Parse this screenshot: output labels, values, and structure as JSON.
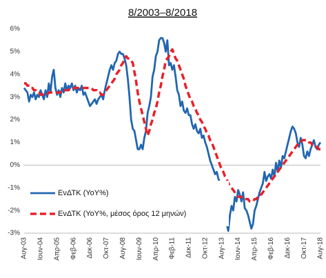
{
  "chart_data": {
    "type": "line",
    "title": "8/2003–8/2018",
    "categories": [
      "Αυγ-03",
      null,
      null,
      null,
      null,
      null,
      null,
      null,
      null,
      null,
      "Ιουν-04",
      null,
      null,
      null,
      null,
      null,
      null,
      null,
      null,
      null,
      "Απρ-05",
      null,
      null,
      null,
      null,
      null,
      null,
      null,
      null,
      null,
      "Φεβ-06",
      null,
      null,
      null,
      null,
      null,
      null,
      null,
      null,
      null,
      "Δεκ-06",
      null,
      null,
      null,
      null,
      null,
      null,
      null,
      null,
      null,
      "Οκτ-07",
      null,
      null,
      null,
      null,
      null,
      null,
      null,
      null,
      null,
      "Αυγ-08",
      null,
      null,
      null,
      null,
      null,
      null,
      null,
      null,
      null,
      "Ιουν-09",
      null,
      null,
      null,
      null,
      null,
      null,
      null,
      null,
      null,
      "Απρ-10",
      null,
      null,
      null,
      null,
      null,
      null,
      null,
      null,
      null,
      "Φεβ-11",
      null,
      null,
      null,
      null,
      null,
      null,
      null,
      null,
      null,
      "Δεκ-11",
      null,
      null,
      null,
      null,
      null,
      null,
      null,
      null,
      null,
      "Οκτ-12",
      null,
      null,
      null,
      null,
      null,
      null,
      null,
      null,
      null,
      "Αυγ-13",
      null,
      null,
      null,
      null,
      null,
      null,
      null,
      null,
      null,
      "Ιουν-14",
      null,
      null,
      null,
      null,
      null,
      null,
      null,
      null,
      null,
      "Απρ-15",
      null,
      null,
      null,
      null,
      null,
      null,
      null,
      null,
      null,
      "Φεβ-16",
      null,
      null,
      null,
      null,
      null,
      null,
      null,
      null,
      null,
      "Δεκ-16",
      null,
      null,
      null,
      null,
      null,
      null,
      null,
      null,
      null,
      "Οκτ-17",
      null,
      null,
      null,
      null,
      null,
      null,
      null,
      null,
      null,
      "Αυγ-18"
    ],
    "series": [
      {
        "name": "ΕνΔΤΚ (YoY%)",
        "color": "#2166b0",
        "dashed": false,
        "values": [
          3.4,
          3.3,
          3.2,
          2.8,
          3.1,
          3.0,
          3.2,
          2.9,
          3.1,
          3.0,
          3.3,
          3.1,
          2.9,
          3.3,
          3.0,
          3.6,
          3.2,
          3.9,
          4.2,
          3.4,
          3.1,
          3.3,
          3.0,
          3.4,
          3.2,
          3.6,
          3.3,
          3.5,
          3.4,
          3.6,
          3.3,
          3.5,
          3.2,
          3.4,
          3.3,
          3.5,
          3.1,
          3.2,
          3.0,
          2.8,
          2.6,
          2.7,
          2.8,
          2.9,
          2.7,
          2.9,
          3.0,
          3.1,
          2.9,
          3.3,
          3.6,
          3.9,
          4.2,
          4.4,
          4.2,
          4.5,
          4.6,
          4.9,
          5.0,
          4.9,
          4.9,
          4.7,
          4.4,
          3.8,
          3.0,
          2.0,
          1.6,
          1.5,
          1.1,
          0.7,
          0.7,
          0.9,
          0.7,
          1.2,
          1.5,
          2.3,
          2.6,
          3.0,
          3.9,
          4.2,
          4.8,
          5.0,
          5.5,
          5.6,
          5.6,
          5.4,
          5.0,
          5.5,
          4.4,
          4.5,
          4.2,
          4.4,
          3.9,
          3.3,
          3.1,
          2.6,
          2.8,
          2.4,
          2.3,
          2.5,
          2.2,
          2.2,
          1.8,
          1.6,
          1.8,
          1.5,
          1.4,
          1.6,
          1.2,
          1.3,
          1.0,
          0.8,
          0.5,
          0.2,
          0.0,
          -0.2,
          -0.4,
          -0.3,
          -0.6,
          -0.8,
          -1.0,
          -1.5,
          -1.9,
          -2.6,
          -2.9,
          -2.2,
          -1.8,
          -2.0,
          -1.4,
          -1.6,
          -1.1,
          -1.3,
          -1.6,
          -1.2,
          -1.9,
          -2.0,
          -2.2,
          -2.5,
          -2.8,
          -2.6,
          -2.0,
          -1.8,
          -1.5,
          -1.2,
          -1.0,
          -0.8,
          -0.3,
          -0.7,
          -0.5,
          -0.4,
          -0.6,
          -0.2,
          -0.5,
          0.1,
          -0.3,
          0.2,
          -0.1,
          0.4,
          0.3,
          0.6,
          0.9,
          1.2,
          1.5,
          1.7,
          1.6,
          1.4,
          1.0,
          0.8,
          1.2,
          0.9,
          0.4,
          0.3,
          0.6,
          0.4,
          0.7,
          0.9,
          1.1,
          0.8,
          0.7,
          0.9,
          1.0
        ]
      },
      {
        "name": "ΕνΔΤΚ (YoY%, μέσος όρος 12 μηνών)",
        "color": "#e8202a",
        "dashed": true,
        "values": [
          3.6,
          3.6,
          3.5,
          3.5,
          3.4,
          3.4,
          3.3,
          3.3,
          3.2,
          3.2,
          3.1,
          3.1,
          3.1,
          3.1,
          3.1,
          3.2,
          3.2,
          3.2,
          3.2,
          3.2,
          3.2,
          3.2,
          3.2,
          3.3,
          3.3,
          3.3,
          3.3,
          3.3,
          3.4,
          3.4,
          3.4,
          3.4,
          3.4,
          3.4,
          3.4,
          3.4,
          3.4,
          3.4,
          3.4,
          3.4,
          3.4,
          3.4,
          3.3,
          3.3,
          3.3,
          3.2,
          3.2,
          3.1,
          3.1,
          3.2,
          3.3,
          3.4,
          3.5,
          3.6,
          3.7,
          3.8,
          4.0,
          4.1,
          4.2,
          4.4,
          4.5,
          4.7,
          4.8,
          4.7,
          4.7,
          4.6,
          4.5,
          4.1,
          3.7,
          3.2,
          2.8,
          2.5,
          2.2,
          1.9,
          1.6,
          1.3,
          1.5,
          1.8,
          2.0,
          2.3,
          2.5,
          2.8,
          3.2,
          3.5,
          3.9,
          4.2,
          4.6,
          4.7,
          4.8,
          5.0,
          5.1,
          4.9,
          4.7,
          4.6,
          4.4,
          4.2,
          4.0,
          3.8,
          3.5,
          3.3,
          3.1,
          2.9,
          2.8,
          2.6,
          2.5,
          2.3,
          2.2,
          2.0,
          1.9,
          1.7,
          1.6,
          1.4,
          1.3,
          1.1,
          1.0,
          0.8,
          0.6,
          0.4,
          0.2,
          0.0,
          -0.2,
          -0.3,
          -0.5,
          -0.6,
          -0.8,
          -0.9,
          -1.0,
          -1.1,
          -1.2,
          -1.3,
          -1.4,
          -1.4,
          -1.4,
          -1.5,
          -1.5,
          -1.5,
          -1.5,
          -1.6,
          -1.6,
          -1.6,
          -1.5,
          -1.5,
          -1.4,
          -1.3,
          -1.3,
          -1.2,
          -1.1,
          -1.0,
          -0.9,
          -0.8,
          -0.7,
          -0.6,
          -0.5,
          -0.4,
          -0.3,
          -0.2,
          -0.1,
          0.0,
          0.1,
          0.2,
          0.3,
          0.4,
          0.5,
          0.6,
          0.7,
          0.8,
          0.9,
          1.0,
          1.0,
          1.1,
          1.1,
          1.1,
          1.1,
          1.0,
          1.0,
          0.9,
          0.9,
          0.8,
          0.8,
          0.7,
          0.7
        ]
      }
    ],
    "ylim": [
      -3,
      6
    ],
    "yticks": [
      {
        "value": -3,
        "label": "-3%"
      },
      {
        "value": -2,
        "label": "-2%"
      },
      {
        "value": -1,
        "label": "-1%"
      },
      {
        "value": 0,
        "label": "0%"
      },
      {
        "value": 1,
        "label": "1%"
      },
      {
        "value": 2,
        "label": "2%"
      },
      {
        "value": 3,
        "label": "3%"
      },
      {
        "value": 4,
        "label": "4%"
      },
      {
        "value": 5,
        "label": "5%"
      },
      {
        "value": 6,
        "label": "6%"
      }
    ],
    "grid": false,
    "legend": "lower left"
  }
}
